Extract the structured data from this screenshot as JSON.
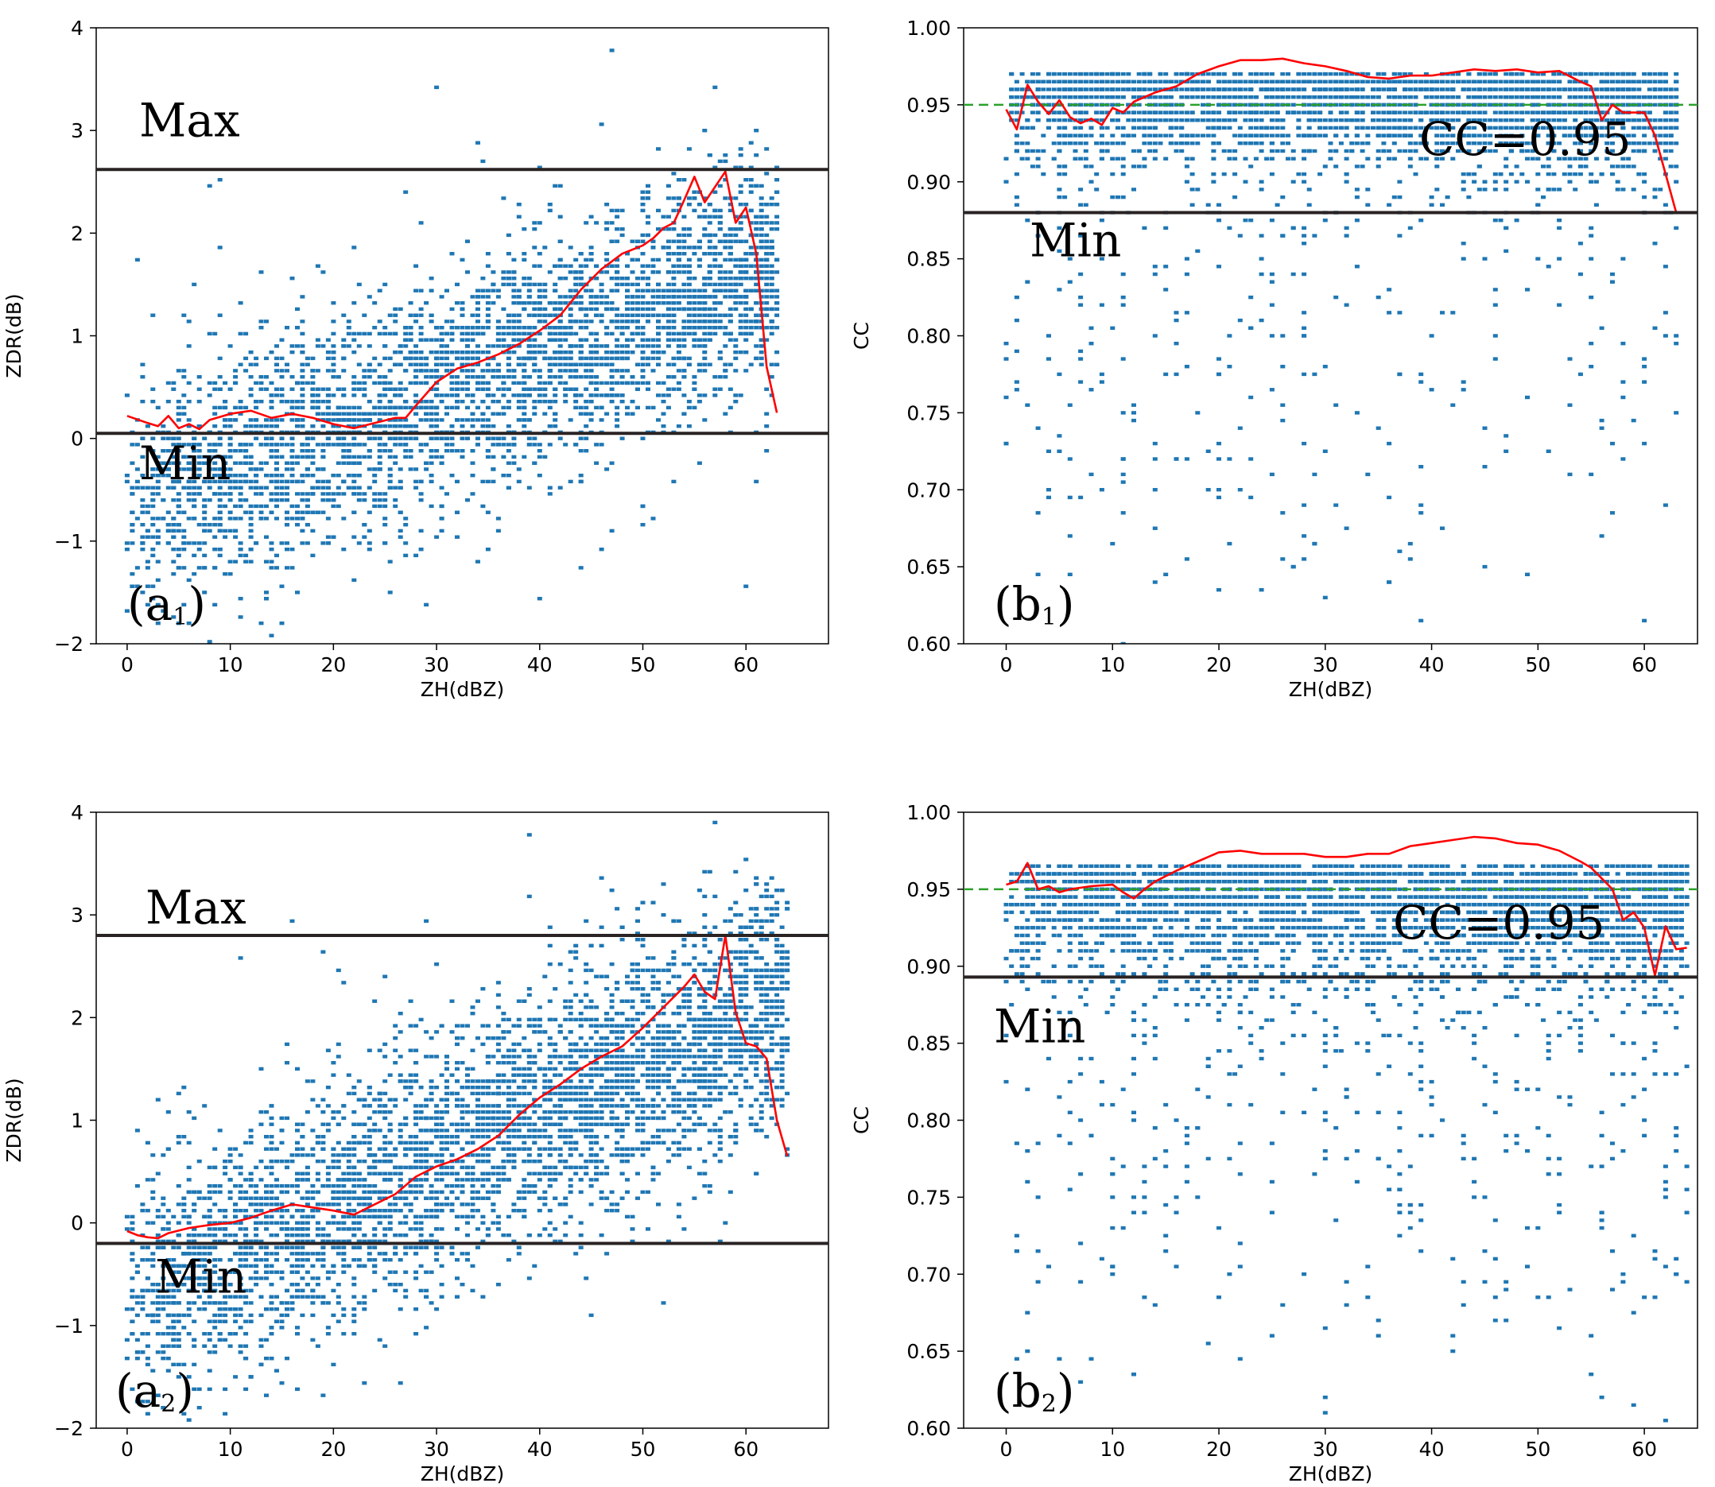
{
  "colors": {
    "scatter": "#1f77b4",
    "mean_line": "#ff0000",
    "threshold": "#2a2323",
    "reference": "#2ca02c"
  },
  "chart_data": [
    {
      "id": "a1",
      "type": "scatter",
      "panel_label": {
        "main": "(a",
        "sub": "1",
        "close": ")"
      },
      "xlabel": "ZH(dBZ)",
      "ylabel": "ZDR(dB)",
      "xlim": [
        -3,
        68
      ],
      "ylim": [
        -2,
        4
      ],
      "xticks": [
        0,
        10,
        20,
        30,
        40,
        50,
        60
      ],
      "yticks": [
        -2,
        -1,
        0,
        1,
        2,
        3,
        4
      ],
      "tick_decimals": 0,
      "scatter_model": {
        "slope": 0.038,
        "intercept": -0.7,
        "spread": 0.55,
        "x_range": [
          0,
          63
        ],
        "n": 3500,
        "seed": 11,
        "outliers": 140
      },
      "mean_curve": {
        "x": [
          0,
          2,
          3,
          4,
          5,
          6,
          7,
          8,
          10,
          12,
          14,
          16,
          18,
          20,
          22,
          24,
          26,
          27,
          28,
          30,
          32,
          34,
          36,
          38,
          40,
          42,
          44,
          46,
          48,
          50,
          51,
          52,
          53,
          54,
          55,
          56,
          57,
          58,
          59,
          60,
          61,
          62,
          63
        ],
        "y": [
          0.22,
          0.15,
          0.12,
          0.22,
          0.1,
          0.14,
          0.09,
          0.18,
          0.24,
          0.27,
          0.2,
          0.24,
          0.2,
          0.14,
          0.1,
          0.15,
          0.2,
          0.2,
          0.32,
          0.55,
          0.68,
          0.74,
          0.82,
          0.92,
          1.05,
          1.2,
          1.45,
          1.65,
          1.8,
          1.88,
          1.95,
          2.05,
          2.1,
          2.32,
          2.55,
          2.3,
          2.45,
          2.6,
          2.1,
          2.25,
          1.8,
          0.7,
          0.25
        ]
      },
      "thresholds": [
        {
          "label": "Max",
          "value": 2.62
        },
        {
          "label": "Min",
          "value": 0.05
        }
      ],
      "reference": null
    },
    {
      "id": "b1",
      "type": "scatter",
      "panel_label": {
        "main": "(b",
        "sub": "1",
        "close": ")"
      },
      "xlabel": "ZH(dBZ)",
      "ylabel": "CC",
      "xlim": [
        -4,
        65
      ],
      "ylim": [
        0.6,
        1.0
      ],
      "xticks": [
        0,
        10,
        20,
        30,
        40,
        50,
        60
      ],
      "yticks": [
        0.6,
        0.65,
        0.7,
        0.75,
        0.8,
        0.85,
        0.9,
        0.95,
        1.0
      ],
      "tick_decimals": 2,
      "scatter_model": {
        "base": 0.97,
        "spread": 0.03,
        "x_range": [
          0,
          63
        ],
        "n": 3000,
        "seed": 23,
        "tail": 320
      },
      "mean_curve": {
        "x": [
          0,
          1,
          2,
          3,
          4,
          5,
          6,
          7,
          8,
          9,
          10,
          11,
          12,
          14,
          16,
          18,
          20,
          22,
          24,
          26,
          28,
          30,
          32,
          34,
          36,
          38,
          40,
          42,
          44,
          46,
          48,
          50,
          52,
          54,
          55,
          56,
          57,
          58,
          60,
          61,
          62,
          63
        ],
        "y": [
          0.947,
          0.934,
          0.963,
          0.952,
          0.944,
          0.953,
          0.942,
          0.938,
          0.941,
          0.937,
          0.948,
          0.945,
          0.952,
          0.958,
          0.962,
          0.97,
          0.975,
          0.979,
          0.979,
          0.98,
          0.977,
          0.975,
          0.972,
          0.968,
          0.967,
          0.969,
          0.969,
          0.971,
          0.973,
          0.972,
          0.973,
          0.971,
          0.972,
          0.965,
          0.962,
          0.94,
          0.95,
          0.945,
          0.945,
          0.93,
          0.905,
          0.88
        ]
      },
      "thresholds": [
        {
          "label": "Min",
          "value": 0.88
        }
      ],
      "reference": {
        "label": "CC=0.95",
        "value": 0.95
      }
    },
    {
      "id": "a2",
      "type": "scatter",
      "panel_label": {
        "main": "(a",
        "sub": "2",
        "close": ")"
      },
      "xlabel": "ZH(dBZ)",
      "ylabel": "ZDR(dB)",
      "xlim": [
        -3,
        68
      ],
      "ylim": [
        -2,
        4
      ],
      "xticks": [
        0,
        10,
        20,
        30,
        40,
        50,
        60
      ],
      "yticks": [
        -2,
        -1,
        0,
        1,
        2,
        3,
        4
      ],
      "tick_decimals": 0,
      "scatter_model": {
        "slope": 0.045,
        "intercept": -0.75,
        "spread": 0.6,
        "x_range": [
          0,
          64
        ],
        "n": 3800,
        "seed": 37,
        "outliers": 160
      },
      "mean_curve": {
        "x": [
          0,
          1,
          2,
          3,
          4,
          6,
          8,
          10,
          12,
          14,
          16,
          18,
          20,
          22,
          24,
          26,
          28,
          30,
          32,
          34,
          36,
          38,
          40,
          42,
          44,
          46,
          48,
          50,
          52,
          54,
          55,
          56,
          57,
          58,
          59,
          60,
          61,
          62,
          63,
          64
        ],
        "y": [
          -0.08,
          -0.12,
          -0.14,
          -0.15,
          -0.1,
          -0.05,
          -0.02,
          0.0,
          0.05,
          0.12,
          0.18,
          0.15,
          0.12,
          0.08,
          0.18,
          0.28,
          0.45,
          0.55,
          0.62,
          0.72,
          0.85,
          1.05,
          1.22,
          1.35,
          1.5,
          1.62,
          1.72,
          1.9,
          2.1,
          2.3,
          2.42,
          2.25,
          2.18,
          2.8,
          2.05,
          1.75,
          1.72,
          1.6,
          1.0,
          0.65
        ]
      },
      "thresholds": [
        {
          "label": "Max",
          "value": 2.8
        },
        {
          "label": "Min",
          "value": -0.2
        }
      ],
      "reference": null
    },
    {
      "id": "b2",
      "type": "scatter",
      "panel_label": {
        "main": "(b",
        "sub": "2",
        "close": ")"
      },
      "xlabel": "ZH(dBZ)",
      "ylabel": "CC",
      "xlim": [
        -4,
        65
      ],
      "ylim": [
        0.6,
        1.0
      ],
      "xticks": [
        0,
        10,
        20,
        30,
        40,
        50,
        60
      ],
      "yticks": [
        0.6,
        0.65,
        0.7,
        0.75,
        0.8,
        0.85,
        0.9,
        0.95,
        1.0
      ],
      "tick_decimals": 2,
      "scatter_model": {
        "base": 0.965,
        "spread": 0.035,
        "x_range": [
          0,
          64
        ],
        "n": 3400,
        "seed": 53,
        "tail": 420
      },
      "mean_curve": {
        "x": [
          0,
          1,
          2,
          3,
          4,
          5,
          6,
          8,
          10,
          11,
          12,
          13,
          14,
          16,
          18,
          20,
          22,
          24,
          26,
          28,
          30,
          32,
          34,
          36,
          38,
          40,
          42,
          44,
          46,
          48,
          50,
          52,
          54,
          55,
          56,
          57,
          58,
          59,
          60,
          61,
          62,
          63,
          64
        ],
        "y": [
          0.953,
          0.955,
          0.967,
          0.95,
          0.952,
          0.948,
          0.95,
          0.952,
          0.953,
          0.948,
          0.944,
          0.95,
          0.955,
          0.962,
          0.968,
          0.974,
          0.975,
          0.973,
          0.973,
          0.973,
          0.971,
          0.971,
          0.973,
          0.973,
          0.978,
          0.98,
          0.982,
          0.984,
          0.983,
          0.98,
          0.979,
          0.975,
          0.968,
          0.964,
          0.957,
          0.95,
          0.93,
          0.935,
          0.925,
          0.894,
          0.926,
          0.911,
          0.912
        ]
      },
      "thresholds": [
        {
          "label": "Min",
          "value": 0.893
        }
      ],
      "reference": {
        "label": "CC=0.95",
        "value": 0.95
      }
    }
  ]
}
